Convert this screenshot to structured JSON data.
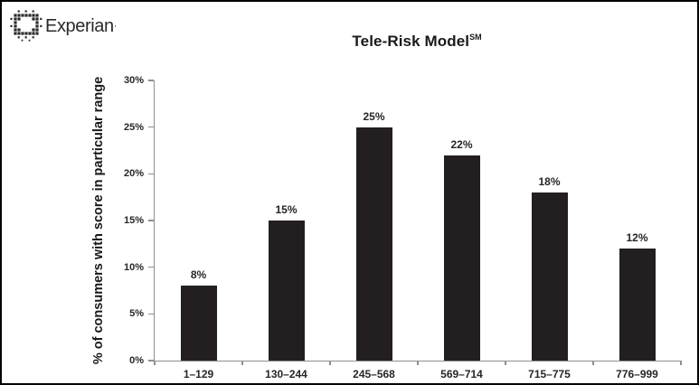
{
  "logo": {
    "text": "Experian",
    "trademark": "·",
    "icon": "experian-dotted-square-logo-icon",
    "color": "#2b2a29"
  },
  "title": {
    "text": "Tele-Risk Model",
    "superscript": "SM"
  },
  "chart_data": {
    "type": "bar",
    "title": "Tele-Risk Model (SM)",
    "categories": [
      "1–129",
      "130–244",
      "245–568",
      "569–714",
      "715–775",
      "776–999"
    ],
    "values": [
      8,
      15,
      25,
      22,
      18,
      12
    ],
    "data_labels": [
      "8%",
      "15%",
      "25%",
      "22%",
      "18%",
      "12%"
    ],
    "xlabel": "",
    "ylabel": "% of consumers with score in particular range",
    "ylim": [
      0,
      30
    ],
    "ytick_step": 5,
    "ytick_labels": [
      "0%",
      "5%",
      "10%",
      "15%",
      "20%",
      "25%",
      "30%"
    ],
    "grid": false,
    "legend_position": "none",
    "bar_color": "#231f20",
    "axis_color": "#8f8f8f",
    "text_color": "#262626"
  }
}
